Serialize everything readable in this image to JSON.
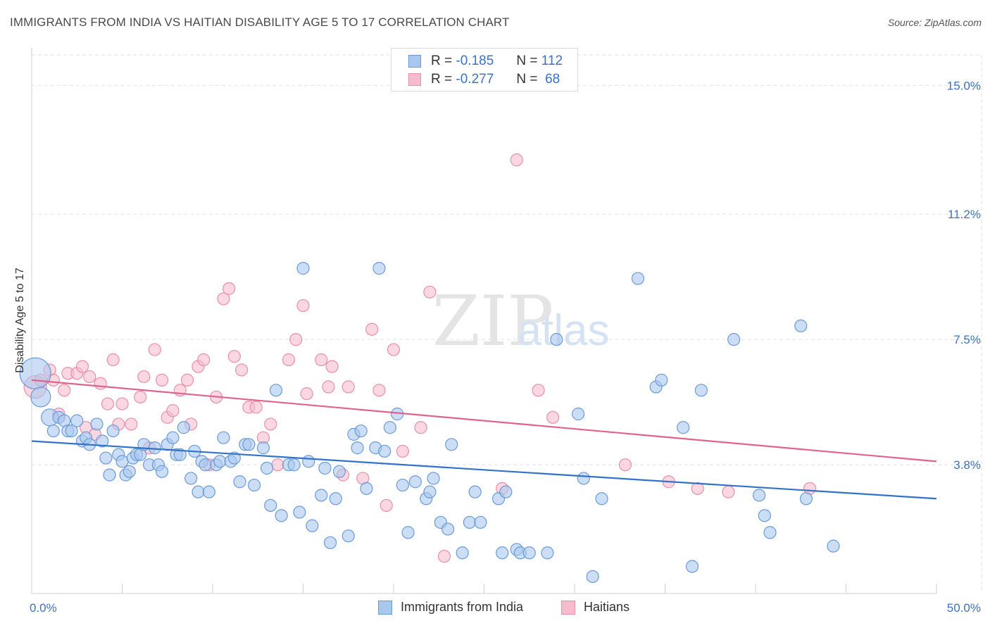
{
  "header": {
    "title": "IMMIGRANTS FROM INDIA VS HAITIAN DISABILITY AGE 5 TO 17 CORRELATION CHART",
    "source": "Source: ZipAtlas.com"
  },
  "legend": {
    "rows": [
      {
        "r_label": "R =",
        "r_value": "-0.185",
        "n_label": "N =",
        "n_value": "112"
      },
      {
        "r_label": "R =",
        "r_value": "-0.277",
        "n_label": "N =",
        "n_value": "68"
      }
    ]
  },
  "colors": {
    "blue_fill": "#a9c8ef",
    "blue_stroke": "#6a9bd8",
    "blue_line": "#3173c9",
    "pink_fill": "#f6bccd",
    "pink_stroke": "#e88fab",
    "pink_line": "#e0638f",
    "tick_label": "#3b72c4",
    "grid": "#e2e2e2"
  },
  "chart_data": {
    "type": "scatter",
    "title": "IMMIGRANTS FROM INDIA VS HAITIAN DISABILITY AGE 5 TO 17 CORRELATION CHART",
    "xlabel": "",
    "ylabel": "Disability Age 5 to 17",
    "xlim": [
      0,
      50
    ],
    "ylim": [
      0,
      15.9
    ],
    "x_tick_labels": [
      "0.0%",
      "50.0%"
    ],
    "y_ticks": [
      3.8,
      7.5,
      11.2,
      15.0
    ],
    "y_tick_labels": [
      "3.8%",
      "7.5%",
      "11.2%",
      "15.0%"
    ],
    "grid": true,
    "watermark": "ZIPatlas",
    "series": [
      {
        "name": "Immigrants from India",
        "color": "#a9c8ef",
        "trend": {
          "x": [
            0,
            50
          ],
          "y": [
            4.5,
            2.8
          ]
        },
        "points": [
          {
            "x": 0.2,
            "y": 6.5,
            "s": 22
          },
          {
            "x": 0.5,
            "y": 5.8,
            "s": 14
          },
          {
            "x": 1.0,
            "y": 5.2,
            "s": 12
          },
          {
            "x": 1.2,
            "y": 4.8
          },
          {
            "x": 1.5,
            "y": 5.2
          },
          {
            "x": 1.8,
            "y": 5.1
          },
          {
            "x": 2.0,
            "y": 4.8
          },
          {
            "x": 2.2,
            "y": 4.8
          },
          {
            "x": 2.5,
            "y": 5.1
          },
          {
            "x": 2.8,
            "y": 4.5
          },
          {
            "x": 3.0,
            "y": 4.6
          },
          {
            "x": 3.2,
            "y": 4.4
          },
          {
            "x": 3.6,
            "y": 5.0
          },
          {
            "x": 3.9,
            "y": 4.5
          },
          {
            "x": 4.1,
            "y": 4.0
          },
          {
            "x": 4.3,
            "y": 3.5
          },
          {
            "x": 4.5,
            "y": 4.8
          },
          {
            "x": 4.8,
            "y": 4.1
          },
          {
            "x": 5.0,
            "y": 3.9
          },
          {
            "x": 5.2,
            "y": 3.5
          },
          {
            "x": 5.4,
            "y": 3.6
          },
          {
            "x": 5.6,
            "y": 4.0
          },
          {
            "x": 5.8,
            "y": 4.1
          },
          {
            "x": 6.0,
            "y": 4.1
          },
          {
            "x": 6.2,
            "y": 4.4
          },
          {
            "x": 6.5,
            "y": 3.8
          },
          {
            "x": 6.8,
            "y": 4.3
          },
          {
            "x": 7.0,
            "y": 3.8
          },
          {
            "x": 7.2,
            "y": 3.6
          },
          {
            "x": 7.5,
            "y": 4.4
          },
          {
            "x": 7.8,
            "y": 4.6
          },
          {
            "x": 8.0,
            "y": 4.1
          },
          {
            "x": 8.2,
            "y": 4.1
          },
          {
            "x": 8.4,
            "y": 4.9
          },
          {
            "x": 8.8,
            "y": 3.4
          },
          {
            "x": 9.0,
            "y": 4.2
          },
          {
            "x": 9.2,
            "y": 3.0
          },
          {
            "x": 9.4,
            "y": 3.9
          },
          {
            "x": 9.6,
            "y": 3.8
          },
          {
            "x": 9.8,
            "y": 3.0
          },
          {
            "x": 10.2,
            "y": 3.8
          },
          {
            "x": 10.4,
            "y": 3.9
          },
          {
            "x": 10.6,
            "y": 4.6
          },
          {
            "x": 11.0,
            "y": 3.9
          },
          {
            "x": 11.2,
            "y": 4.0
          },
          {
            "x": 11.5,
            "y": 3.3
          },
          {
            "x": 11.8,
            "y": 4.4
          },
          {
            "x": 12.0,
            "y": 4.4
          },
          {
            "x": 12.3,
            "y": 3.2
          },
          {
            "x": 12.8,
            "y": 4.3
          },
          {
            "x": 13.0,
            "y": 3.7
          },
          {
            "x": 13.2,
            "y": 2.6
          },
          {
            "x": 13.5,
            "y": 6.0
          },
          {
            "x": 13.8,
            "y": 2.3
          },
          {
            "x": 14.2,
            "y": 3.8
          },
          {
            "x": 14.5,
            "y": 3.8
          },
          {
            "x": 14.8,
            "y": 2.4
          },
          {
            "x": 15.0,
            "y": 9.6
          },
          {
            "x": 15.3,
            "y": 3.9
          },
          {
            "x": 15.5,
            "y": 2.0
          },
          {
            "x": 16.0,
            "y": 2.9
          },
          {
            "x": 16.2,
            "y": 3.7
          },
          {
            "x": 16.5,
            "y": 1.5
          },
          {
            "x": 16.8,
            "y": 2.8
          },
          {
            "x": 17.0,
            "y": 3.6
          },
          {
            "x": 17.5,
            "y": 1.7
          },
          {
            "x": 17.8,
            "y": 4.7
          },
          {
            "x": 18.0,
            "y": 4.3
          },
          {
            "x": 18.2,
            "y": 4.8
          },
          {
            "x": 18.5,
            "y": 3.1
          },
          {
            "x": 19.0,
            "y": 4.3
          },
          {
            "x": 19.2,
            "y": 9.6
          },
          {
            "x": 19.5,
            "y": 4.2
          },
          {
            "x": 19.8,
            "y": 4.9
          },
          {
            "x": 20.2,
            "y": 5.3
          },
          {
            "x": 20.5,
            "y": 3.2
          },
          {
            "x": 20.8,
            "y": 1.8
          },
          {
            "x": 21.2,
            "y": 3.3
          },
          {
            "x": 21.8,
            "y": 2.8
          },
          {
            "x": 22.0,
            "y": 3.0
          },
          {
            "x": 22.2,
            "y": 3.4
          },
          {
            "x": 22.6,
            "y": 2.1
          },
          {
            "x": 23.0,
            "y": 1.9
          },
          {
            "x": 23.2,
            "y": 4.4
          },
          {
            "x": 23.8,
            "y": 1.2
          },
          {
            "x": 24.2,
            "y": 2.1
          },
          {
            "x": 24.5,
            "y": 3.0
          },
          {
            "x": 24.8,
            "y": 2.1
          },
          {
            "x": 25.8,
            "y": 2.8
          },
          {
            "x": 26.0,
            "y": 1.2
          },
          {
            "x": 26.2,
            "y": 3.0
          },
          {
            "x": 26.8,
            "y": 1.3
          },
          {
            "x": 27.0,
            "y": 1.2
          },
          {
            "x": 27.5,
            "y": 1.2
          },
          {
            "x": 28.5,
            "y": 1.2
          },
          {
            "x": 29.0,
            "y": 7.5
          },
          {
            "x": 30.2,
            "y": 5.3
          },
          {
            "x": 30.5,
            "y": 3.4
          },
          {
            "x": 31.0,
            "y": 0.5
          },
          {
            "x": 31.5,
            "y": 2.8
          },
          {
            "x": 33.5,
            "y": 9.3
          },
          {
            "x": 34.5,
            "y": 6.1
          },
          {
            "x": 34.8,
            "y": 6.3
          },
          {
            "x": 36.0,
            "y": 4.9
          },
          {
            "x": 36.5,
            "y": 0.8
          },
          {
            "x": 37.0,
            "y": 6.0
          },
          {
            "x": 38.8,
            "y": 7.5
          },
          {
            "x": 40.2,
            "y": 2.9
          },
          {
            "x": 40.5,
            "y": 2.3
          },
          {
            "x": 40.8,
            "y": 1.8
          },
          {
            "x": 42.5,
            "y": 7.9
          },
          {
            "x": 42.8,
            "y": 2.8
          },
          {
            "x": 44.3,
            "y": 1.4
          }
        ]
      },
      {
        "name": "Haitians",
        "color": "#f6bccd",
        "trend": {
          "x": [
            0,
            50
          ],
          "y": [
            6.3,
            3.9
          ]
        },
        "points": [
          {
            "x": 0.2,
            "y": 6.1,
            "s": 16
          },
          {
            "x": 0.5,
            "y": 6.3
          },
          {
            "x": 1.0,
            "y": 6.6
          },
          {
            "x": 1.2,
            "y": 6.3
          },
          {
            "x": 1.5,
            "y": 5.3
          },
          {
            "x": 1.8,
            "y": 6.0
          },
          {
            "x": 2.0,
            "y": 6.5
          },
          {
            "x": 2.5,
            "y": 6.5
          },
          {
            "x": 2.8,
            "y": 6.7
          },
          {
            "x": 3.0,
            "y": 4.9
          },
          {
            "x": 3.2,
            "y": 6.4
          },
          {
            "x": 3.5,
            "y": 4.7
          },
          {
            "x": 3.8,
            "y": 6.2
          },
          {
            "x": 4.2,
            "y": 5.6
          },
          {
            "x": 4.5,
            "y": 6.9
          },
          {
            "x": 4.8,
            "y": 5.0
          },
          {
            "x": 5.0,
            "y": 5.6
          },
          {
            "x": 5.5,
            "y": 5.0
          },
          {
            "x": 6.0,
            "y": 5.8
          },
          {
            "x": 6.2,
            "y": 6.4
          },
          {
            "x": 6.5,
            "y": 4.3
          },
          {
            "x": 6.8,
            "y": 7.2
          },
          {
            "x": 7.2,
            "y": 6.3
          },
          {
            "x": 7.5,
            "y": 5.2
          },
          {
            "x": 7.8,
            "y": 5.4
          },
          {
            "x": 8.2,
            "y": 6.0
          },
          {
            "x": 8.6,
            "y": 6.3
          },
          {
            "x": 8.8,
            "y": 5.0
          },
          {
            "x": 9.2,
            "y": 6.7
          },
          {
            "x": 9.5,
            "y": 6.9
          },
          {
            "x": 9.8,
            "y": 3.8
          },
          {
            "x": 10.2,
            "y": 5.8
          },
          {
            "x": 10.6,
            "y": 8.7
          },
          {
            "x": 10.9,
            "y": 9.0
          },
          {
            "x": 11.2,
            "y": 7.0
          },
          {
            "x": 11.6,
            "y": 6.6
          },
          {
            "x": 12.0,
            "y": 5.5
          },
          {
            "x": 12.4,
            "y": 5.5
          },
          {
            "x": 12.8,
            "y": 4.6
          },
          {
            "x": 13.2,
            "y": 5.0
          },
          {
            "x": 13.6,
            "y": 3.8
          },
          {
            "x": 14.2,
            "y": 6.9
          },
          {
            "x": 14.6,
            "y": 7.5
          },
          {
            "x": 15.0,
            "y": 8.5
          },
          {
            "x": 15.2,
            "y": 5.9
          },
          {
            "x": 16.0,
            "y": 6.9
          },
          {
            "x": 16.4,
            "y": 6.1
          },
          {
            "x": 16.6,
            "y": 6.7
          },
          {
            "x": 17.2,
            "y": 3.5
          },
          {
            "x": 17.5,
            "y": 6.1
          },
          {
            "x": 18.3,
            "y": 3.4
          },
          {
            "x": 18.8,
            "y": 7.8
          },
          {
            "x": 19.2,
            "y": 6.0
          },
          {
            "x": 19.6,
            "y": 2.6
          },
          {
            "x": 20.0,
            "y": 7.2
          },
          {
            "x": 20.5,
            "y": 4.2
          },
          {
            "x": 21.5,
            "y": 4.9
          },
          {
            "x": 22.0,
            "y": 8.9
          },
          {
            "x": 22.8,
            "y": 1.1
          },
          {
            "x": 26.0,
            "y": 3.1
          },
          {
            "x": 26.8,
            "y": 12.8
          },
          {
            "x": 28.0,
            "y": 6.0
          },
          {
            "x": 28.8,
            "y": 5.2
          },
          {
            "x": 32.8,
            "y": 3.8
          },
          {
            "x": 35.2,
            "y": 3.3
          },
          {
            "x": 36.8,
            "y": 3.1
          },
          {
            "x": 38.5,
            "y": 3.0
          },
          {
            "x": 43.0,
            "y": 3.1
          }
        ]
      }
    ]
  }
}
